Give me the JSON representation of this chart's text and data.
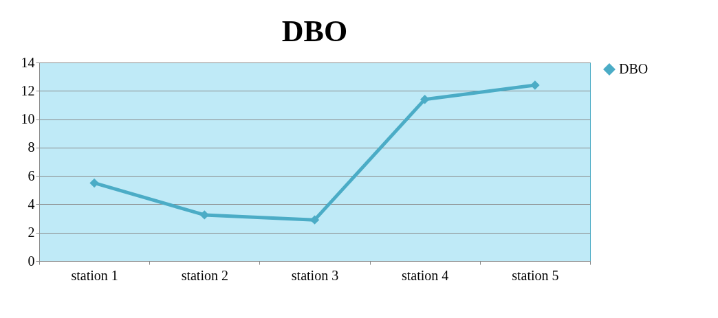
{
  "chart_data": {
    "type": "line",
    "title": "DBO",
    "categories": [
      "station 1",
      "station 2",
      "station 3",
      "station 4",
      "station 5"
    ],
    "series": [
      {
        "name": "DBO",
        "color": "#4bacc6",
        "values": [
          5.5,
          3.25,
          2.9,
          11.4,
          12.4
        ]
      }
    ],
    "ylim": [
      0,
      14
    ],
    "yticks": [
      0,
      2,
      4,
      6,
      8,
      10,
      12,
      14
    ],
    "grid": "y",
    "legend": "right",
    "marker": "diamond",
    "line_style": "solid"
  }
}
